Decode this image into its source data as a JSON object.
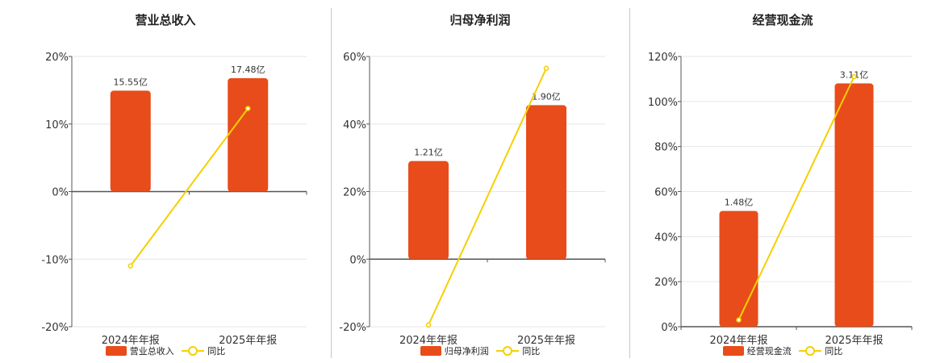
{
  "chart_data": [
    {
      "type": "bar",
      "title": "营业总收入",
      "categories": [
        "2024年年报",
        "2025年年报"
      ],
      "series": [
        {
          "name": "营业总收入",
          "type": "bar",
          "values": [
            15.55,
            17.48
          ],
          "labels": [
            "15.55亿",
            "17.48亿"
          ]
        },
        {
          "name": "同比",
          "type": "line",
          "values": [
            -11,
            12.3
          ]
        }
      ],
      "ylim": [
        -20,
        20
      ],
      "yticks": [
        "20%",
        "10%",
        "0%",
        "-10%",
        "-20%"
      ],
      "grid": true,
      "legend": "bottom"
    },
    {
      "type": "bar",
      "title": "归母净利润",
      "categories": [
        "2024年年报",
        "2025年年报"
      ],
      "series": [
        {
          "name": "归母净利润",
          "type": "bar",
          "values": [
            1.21,
            1.9
          ],
          "labels": [
            "1.21亿",
            "1.90亿"
          ]
        },
        {
          "name": "同比",
          "type": "line",
          "values": [
            -19.5,
            56.5
          ]
        }
      ],
      "ylim": [
        -20,
        60
      ],
      "yticks": [
        "60%",
        "40%",
        "20%",
        "0%",
        "-20%"
      ],
      "grid": true,
      "legend": "bottom"
    },
    {
      "type": "bar",
      "title": "经营现金流",
      "categories": [
        "2024年年报",
        "2025年年报"
      ],
      "series": [
        {
          "name": "经营现金流",
          "type": "bar",
          "values": [
            1.48,
            3.11
          ],
          "labels": [
            "1.48亿",
            "3.11亿"
          ]
        },
        {
          "name": "同比",
          "type": "line",
          "values": [
            3,
            111
          ]
        }
      ],
      "ylim": [
        0,
        120
      ],
      "yticks": [
        "120%",
        "100%",
        "80%",
        "60%",
        "40%",
        "20%",
        "0%"
      ],
      "grid": true,
      "legend": "bottom"
    }
  ],
  "colors": {
    "bar": "#e84c1a",
    "line": "#f5d000",
    "grid": "#e6e6e6",
    "axis": "#555555"
  }
}
